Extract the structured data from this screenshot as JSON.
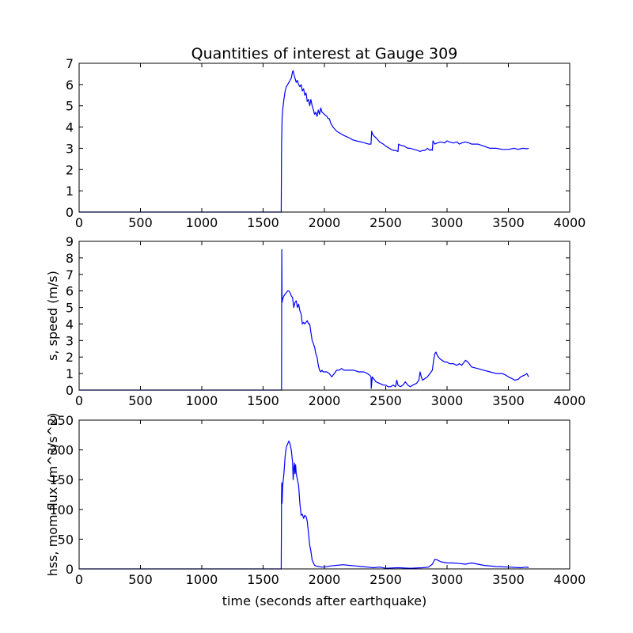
{
  "figure": {
    "title": "Quantities of interest at Gauge 309",
    "line_color": "#0000ff"
  },
  "chart_data": [
    {
      "type": "line",
      "title": "Quantities of interest at Gauge 309",
      "xlabel": "",
      "ylabel": "",
      "xlim": [
        0,
        4000
      ],
      "ylim": [
        0,
        7
      ],
      "xticks": [
        0,
        500,
        1000,
        1500,
        2000,
        2500,
        3000,
        3500,
        4000
      ],
      "yticks": [
        0,
        1,
        2,
        3,
        4,
        5,
        6,
        7
      ],
      "grid": false,
      "series": [
        {
          "color": "#0000ff",
          "x": [
            0,
            1640,
            1648,
            1650,
            1655,
            1660,
            1670,
            1680,
            1690,
            1700,
            1710,
            1720,
            1730,
            1740,
            1745,
            1750,
            1760,
            1770,
            1780,
            1790,
            1800,
            1810,
            1820,
            1830,
            1840,
            1850,
            1860,
            1870,
            1880,
            1890,
            1900,
            1910,
            1920,
            1930,
            1940,
            1950,
            1960,
            1970,
            1980,
            1990,
            2000,
            2010,
            2020,
            2030,
            2040,
            2050,
            2070,
            2100,
            2130,
            2160,
            2200,
            2230,
            2260,
            2300,
            2330,
            2360,
            2380,
            2385,
            2390,
            2400,
            2420,
            2450,
            2480,
            2500,
            2530,
            2560,
            2580,
            2600,
            2605,
            2620,
            2650,
            2680,
            2700,
            2730,
            2760,
            2780,
            2800,
            2820,
            2840,
            2860,
            2870,
            2880,
            2885,
            2900,
            2920,
            2950,
            2980,
            3000,
            3020,
            3050,
            3080,
            3100,
            3120,
            3150,
            3180,
            3200,
            3250,
            3300,
            3350,
            3400,
            3450,
            3500,
            3550,
            3580,
            3600,
            3620,
            3650,
            3665
          ],
          "y": [
            0,
            0,
            0,
            3.0,
            4.4,
            4.8,
            5.3,
            5.7,
            5.9,
            6.0,
            6.1,
            6.2,
            6.3,
            6.6,
            6.65,
            6.5,
            6.3,
            6.1,
            6.2,
            6.0,
            5.9,
            6.0,
            5.7,
            5.8,
            5.5,
            5.6,
            5.2,
            5.3,
            5.0,
            5.3,
            5.0,
            4.8,
            4.6,
            4.7,
            4.5,
            4.8,
            4.6,
            4.9,
            4.7,
            4.65,
            4.6,
            4.55,
            4.5,
            4.4,
            4.4,
            4.2,
            4.0,
            3.8,
            3.7,
            3.6,
            3.5,
            3.4,
            3.35,
            3.3,
            3.25,
            3.2,
            3.2,
            3.8,
            3.7,
            3.6,
            3.5,
            3.3,
            3.2,
            3.1,
            3.0,
            2.9,
            2.9,
            2.85,
            3.2,
            3.15,
            3.1,
            3.0,
            3.0,
            2.95,
            2.9,
            2.85,
            2.9,
            2.9,
            3.0,
            2.9,
            2.95,
            2.9,
            3.35,
            3.2,
            3.25,
            3.3,
            3.25,
            3.35,
            3.3,
            3.25,
            3.3,
            3.2,
            3.25,
            3.3,
            3.25,
            3.2,
            3.2,
            3.1,
            3.0,
            3.0,
            2.95,
            2.95,
            3.0,
            2.95,
            2.98,
            3.0,
            2.98,
            3.0
          ]
        }
      ]
    },
    {
      "type": "line",
      "xlabel": "",
      "ylabel": "s, speed (m/s)",
      "xlim": [
        0,
        4000
      ],
      "ylim": [
        0,
        9
      ],
      "xticks": [
        0,
        500,
        1000,
        1500,
        2000,
        2500,
        3000,
        3500,
        4000
      ],
      "yticks": [
        0,
        1,
        2,
        3,
        4,
        5,
        6,
        7,
        8,
        9
      ],
      "grid": false,
      "series": [
        {
          "color": "#0000ff",
          "x": [
            0,
            1645,
            1650,
            1652,
            1655,
            1660,
            1670,
            1680,
            1690,
            1700,
            1710,
            1720,
            1730,
            1740,
            1750,
            1760,
            1770,
            1780,
            1790,
            1800,
            1810,
            1820,
            1830,
            1840,
            1850,
            1860,
            1870,
            1880,
            1890,
            1900,
            1910,
            1920,
            1930,
            1940,
            1950,
            1960,
            1970,
            1980,
            1990,
            2000,
            2020,
            2040,
            2060,
            2080,
            2100,
            2120,
            2140,
            2160,
            2200,
            2240,
            2280,
            2320,
            2350,
            2370,
            2380,
            2382,
            2390,
            2400,
            2420,
            2450,
            2480,
            2500,
            2520,
            2540,
            2560,
            2580,
            2590,
            2600,
            2620,
            2640,
            2660,
            2680,
            2700,
            2720,
            2750,
            2770,
            2780,
            2790,
            2800,
            2820,
            2840,
            2860,
            2880,
            2890,
            2900,
            2910,
            2920,
            2940,
            2960,
            2980,
            3000,
            3020,
            3050,
            3080,
            3100,
            3120,
            3150,
            3170,
            3190,
            3200,
            3250,
            3300,
            3350,
            3400,
            3450,
            3480,
            3500,
            3530,
            3550,
            3580,
            3600,
            3630,
            3650,
            3665
          ],
          "y": [
            0,
            0,
            0,
            8.5,
            5.3,
            5.5,
            5.7,
            5.8,
            5.9,
            6.0,
            6.0,
            5.9,
            5.7,
            5.6,
            5.0,
            5.3,
            5.4,
            5.0,
            5.2,
            4.8,
            4.6,
            4.0,
            4.1,
            4.0,
            4.1,
            4.2,
            4.0,
            4.0,
            3.5,
            3.0,
            2.8,
            2.6,
            2.2,
            2.0,
            1.5,
            1.2,
            1.1,
            1.2,
            1.1,
            1.1,
            1.1,
            1.0,
            0.8,
            1.0,
            1.2,
            1.2,
            1.3,
            1.2,
            1.2,
            1.2,
            1.1,
            1.1,
            1.0,
            0.9,
            0.8,
            0.1,
            0.8,
            0.7,
            0.5,
            0.4,
            0.3,
            0.3,
            0.2,
            0.2,
            0.3,
            0.2,
            0.6,
            0.3,
            0.2,
            0.3,
            0.5,
            0.3,
            0.2,
            0.3,
            0.4,
            0.6,
            1.1,
            0.8,
            0.6,
            0.7,
            0.8,
            1.0,
            1.2,
            1.8,
            2.2,
            2.3,
            2.1,
            1.9,
            1.8,
            1.7,
            1.7,
            1.6,
            1.6,
            1.5,
            1.6,
            1.5,
            1.8,
            1.7,
            1.5,
            1.4,
            1.3,
            1.2,
            1.1,
            1.0,
            1.0,
            0.9,
            0.8,
            0.7,
            0.6,
            0.65,
            0.8,
            0.9,
            1.0,
            0.8
          ]
        }
      ]
    },
    {
      "type": "line",
      "xlabel": "time (seconds after earthquake)",
      "ylabel": "hss, mom flux (m^3/s^2)",
      "xlim": [
        0,
        4000
      ],
      "ylim": [
        0,
        250
      ],
      "xticks": [
        0,
        500,
        1000,
        1500,
        2000,
        2500,
        3000,
        3500,
        4000
      ],
      "yticks": [
        0,
        50,
        100,
        150,
        200,
        250
      ],
      "grid": false,
      "series": [
        {
          "color": "#0000ff",
          "x": [
            0,
            1640,
            1645,
            1648,
            1650,
            1652,
            1655,
            1660,
            1670,
            1680,
            1690,
            1700,
            1710,
            1720,
            1730,
            1740,
            1745,
            1750,
            1755,
            1760,
            1765,
            1770,
            1780,
            1790,
            1800,
            1810,
            1820,
            1830,
            1840,
            1850,
            1860,
            1870,
            1880,
            1890,
            1900,
            1910,
            1920,
            1930,
            1950,
            1980,
            2000,
            2050,
            2100,
            2150,
            2200,
            2250,
            2300,
            2350,
            2400,
            2450,
            2500,
            2600,
            2700,
            2800,
            2850,
            2880,
            2890,
            2900,
            2920,
            2950,
            3000,
            3050,
            3100,
            3150,
            3200,
            3250,
            3300,
            3400,
            3500,
            3600,
            3650,
            3665
          ],
          "y": [
            0,
            0,
            0,
            0,
            120,
            145,
            110,
            140,
            160,
            190,
            205,
            210,
            215,
            210,
            200,
            180,
            150,
            170,
            178,
            160,
            175,
            160,
            150,
            140,
            110,
            90,
            92,
            85,
            90,
            88,
            80,
            60,
            40,
            30,
            15,
            10,
            6,
            5,
            4,
            3,
            3,
            5,
            6,
            7,
            6,
            5,
            4,
            3,
            2,
            3,
            1,
            2,
            1,
            2,
            3,
            8,
            12,
            16,
            15,
            12,
            10,
            10,
            9,
            8,
            10,
            8,
            6,
            4,
            3,
            2,
            3,
            2
          ]
        }
      ]
    }
  ]
}
